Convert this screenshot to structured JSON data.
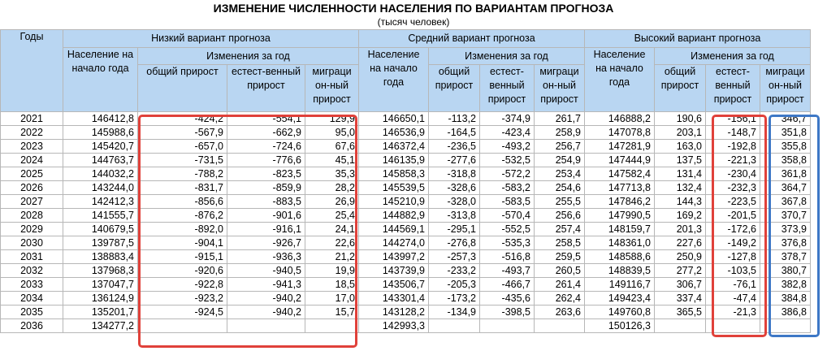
{
  "title": "ИЗМЕНЕНИЕ ЧИСЛЕННОСТИ НАСЕЛЕНИЯ ПО ВАРИАНТАМ ПРОГНОЗА",
  "subtitle": "(тысяч человек)",
  "header": {
    "years": "Годы",
    "low": "Низкий вариант прогноза",
    "mid": "Средний вариант прогноза",
    "high": "Высокий вариант прогноза",
    "population": "Население на начало года",
    "changes": "Изменения за год",
    "total_growth_low": "общий прирост",
    "total_growth": "общий прирост",
    "natural_growth": "естест-венный прирост",
    "migration_growth": "миграци он-ный прирост"
  },
  "rows": [
    {
      "year": "2021",
      "l_pop": "146412,8",
      "l_tot": "-424,2",
      "l_nat": "-554,1",
      "l_mig": "129,9",
      "m_pop": "146650,1",
      "m_tot": "-113,2",
      "m_nat": "-374,9",
      "m_mig": "261,7",
      "h_pop": "146888,2",
      "h_tot": "190,6",
      "h_nat": "-156,1",
      "h_mig": "346,7"
    },
    {
      "year": "2022",
      "l_pop": "145988,6",
      "l_tot": "-567,9",
      "l_nat": "-662,9",
      "l_mig": "95,0",
      "m_pop": "146536,9",
      "m_tot": "-164,5",
      "m_nat": "-423,4",
      "m_mig": "258,9",
      "h_pop": "147078,8",
      "h_tot": "203,1",
      "h_nat": "-148,7",
      "h_mig": "351,8"
    },
    {
      "year": "2023",
      "l_pop": "145420,7",
      "l_tot": "-657,0",
      "l_nat": "-724,6",
      "l_mig": "67,6",
      "m_pop": "146372,4",
      "m_tot": "-236,5",
      "m_nat": "-493,2",
      "m_mig": "256,7",
      "h_pop": "147281,9",
      "h_tot": "163,0",
      "h_nat": "-192,8",
      "h_mig": "355,8"
    },
    {
      "year": "2024",
      "l_pop": "144763,7",
      "l_tot": "-731,5",
      "l_nat": "-776,6",
      "l_mig": "45,1",
      "m_pop": "146135,9",
      "m_tot": "-277,6",
      "m_nat": "-532,5",
      "m_mig": "254,9",
      "h_pop": "147444,9",
      "h_tot": "137,5",
      "h_nat": "-221,3",
      "h_mig": "358,8"
    },
    {
      "year": "2025",
      "l_pop": "144032,2",
      "l_tot": "-788,2",
      "l_nat": "-823,5",
      "l_mig": "35,3",
      "m_pop": "145858,3",
      "m_tot": "-318,8",
      "m_nat": "-572,2",
      "m_mig": "253,4",
      "h_pop": "147582,4",
      "h_tot": "131,4",
      "h_nat": "-230,4",
      "h_mig": "361,8"
    },
    {
      "year": "2026",
      "l_pop": "143244,0",
      "l_tot": "-831,7",
      "l_nat": "-859,9",
      "l_mig": "28,2",
      "m_pop": "145539,5",
      "m_tot": "-328,6",
      "m_nat": "-583,2",
      "m_mig": "254,6",
      "h_pop": "147713,8",
      "h_tot": "132,4",
      "h_nat": "-232,3",
      "h_mig": "364,7"
    },
    {
      "year": "2027",
      "l_pop": "142412,3",
      "l_tot": "-856,6",
      "l_nat": "-883,5",
      "l_mig": "26,9",
      "m_pop": "145210,9",
      "m_tot": "-328,0",
      "m_nat": "-583,5",
      "m_mig": "255,5",
      "h_pop": "147846,2",
      "h_tot": "144,3",
      "h_nat": "-223,5",
      "h_mig": "367,8"
    },
    {
      "year": "2028",
      "l_pop": "141555,7",
      "l_tot": "-876,2",
      "l_nat": "-901,6",
      "l_mig": "25,4",
      "m_pop": "144882,9",
      "m_tot": "-313,8",
      "m_nat": "-570,4",
      "m_mig": "256,6",
      "h_pop": "147990,5",
      "h_tot": "169,2",
      "h_nat": "-201,5",
      "h_mig": "370,7"
    },
    {
      "year": "2029",
      "l_pop": "140679,5",
      "l_tot": "-892,0",
      "l_nat": "-916,1",
      "l_mig": "24,1",
      "m_pop": "144569,1",
      "m_tot": "-295,1",
      "m_nat": "-552,5",
      "m_mig": "257,4",
      "h_pop": "148159,7",
      "h_tot": "201,3",
      "h_nat": "-172,6",
      "h_mig": "373,9"
    },
    {
      "year": "2030",
      "l_pop": "139787,5",
      "l_tot": "-904,1",
      "l_nat": "-926,7",
      "l_mig": "22,6",
      "m_pop": "144274,0",
      "m_tot": "-276,8",
      "m_nat": "-535,3",
      "m_mig": "258,5",
      "h_pop": "148361,0",
      "h_tot": "227,6",
      "h_nat": "-149,2",
      "h_mig": "376,8"
    },
    {
      "year": "2031",
      "l_pop": "138883,4",
      "l_tot": "-915,1",
      "l_nat": "-936,3",
      "l_mig": "21,2",
      "m_pop": "143997,2",
      "m_tot": "-257,3",
      "m_nat": "-516,8",
      "m_mig": "259,5",
      "h_pop": "148588,6",
      "h_tot": "250,9",
      "h_nat": "-127,8",
      "h_mig": "378,7"
    },
    {
      "year": "2032",
      "l_pop": "137968,3",
      "l_tot": "-920,6",
      "l_nat": "-940,5",
      "l_mig": "19,9",
      "m_pop": "143739,9",
      "m_tot": "-233,2",
      "m_nat": "-493,7",
      "m_mig": "260,5",
      "h_pop": "148839,5",
      "h_tot": "277,2",
      "h_nat": "-103,5",
      "h_mig": "380,7"
    },
    {
      "year": "2033",
      "l_pop": "137047,7",
      "l_tot": "-922,8",
      "l_nat": "-941,3",
      "l_mig": "18,5",
      "m_pop": "143506,7",
      "m_tot": "-205,3",
      "m_nat": "-466,7",
      "m_mig": "261,4",
      "h_pop": "149116,7",
      "h_tot": "306,7",
      "h_nat": "-76,1",
      "h_mig": "382,8"
    },
    {
      "year": "2034",
      "l_pop": "136124,9",
      "l_tot": "-923,2",
      "l_nat": "-940,2",
      "l_mig": "17,0",
      "m_pop": "143301,4",
      "m_tot": "-173,2",
      "m_nat": "-435,6",
      "m_mig": "262,4",
      "h_pop": "149423,4",
      "h_tot": "337,4",
      "h_nat": "-47,4",
      "h_mig": "384,8"
    },
    {
      "year": "2035",
      "l_pop": "135201,7",
      "l_tot": "-924,5",
      "l_nat": "-940,2",
      "l_mig": "15,7",
      "m_pop": "143128,2",
      "m_tot": "-134,9",
      "m_nat": "-398,5",
      "m_mig": "263,6",
      "h_pop": "149760,8",
      "h_tot": "365,5",
      "h_nat": "-21,3",
      "h_mig": "386,8"
    },
    {
      "year": "2036",
      "l_pop": "134277,2",
      "l_tot": "",
      "l_nat": "",
      "l_mig": "",
      "m_pop": "142993,3",
      "m_tot": "",
      "m_nat": "",
      "m_mig": "",
      "h_pop": "150126,3",
      "h_tot": "",
      "h_nat": "",
      "h_mig": ""
    }
  ],
  "highlight_colors": {
    "red": "#e0413a",
    "blue": "#3e78c6"
  }
}
